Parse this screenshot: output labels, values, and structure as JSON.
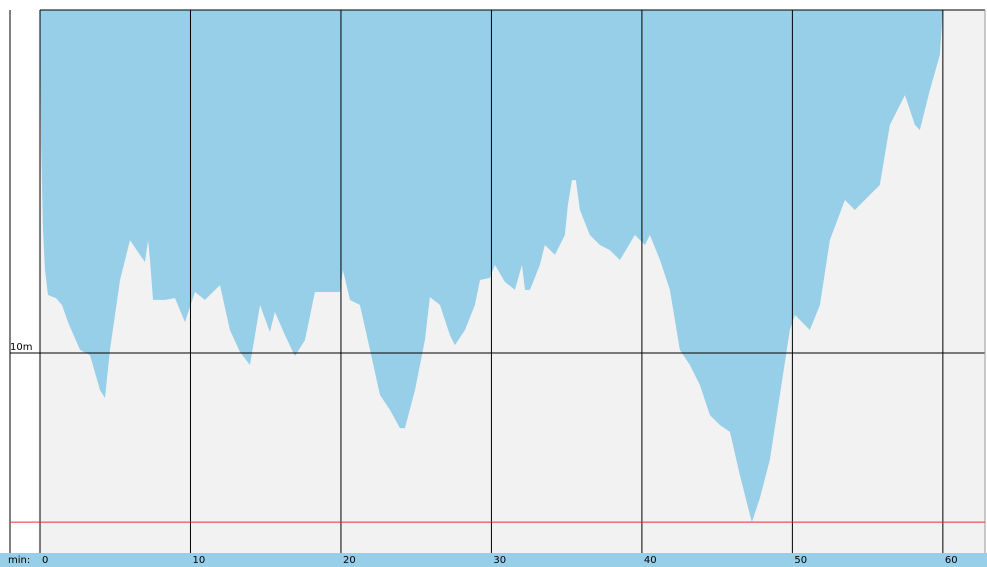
{
  "chart_data": {
    "type": "area",
    "x_label": "min:",
    "x": [
      0,
      0.07,
      0.2,
      0.33,
      0.53,
      1.06,
      1.46,
      1.86,
      2.66,
      3.32,
      3.99,
      4.32,
      4.65,
      5.32,
      5.98,
      6.64,
      6.98,
      7.18,
      7.31,
      7.51,
      8.31,
      8.97,
      9.63,
      10.3,
      10.96,
      11.96,
      12.62,
      13.29,
      13.95,
      14.29,
      14.62,
      15.28,
      15.61,
      16.28,
      16.94,
      17.61,
      18.27,
      19.93,
      20.13,
      20.6,
      21.26,
      21.93,
      22.59,
      23.26,
      23.92,
      24.25,
      24.92,
      25.58,
      25.91,
      26.58,
      27.24,
      27.57,
      28.24,
      28.9,
      29.24,
      29.9,
      30.23,
      30.9,
      31.56,
      32.03,
      32.23,
      32.56,
      33.22,
      33.55,
      34.22,
      34.88,
      35.08,
      35.35,
      35.61,
      35.88,
      36.54,
      37.21,
      37.87,
      38.54,
      39.53,
      40.2,
      40.53,
      41.2,
      41.86,
      42.52,
      43.19,
      43.85,
      44.52,
      45.18,
      45.85,
      46.51,
      47.18,
      47.31,
      47.84,
      48.5,
      49.17,
      49.83,
      50.17,
      51.16,
      51.83,
      52.49,
      53.49,
      54.15,
      55.15,
      55.81,
      56.48,
      57.48,
      58.14,
      58.47,
      59.14,
      59.8,
      60
    ],
    "values": [
      0,
      3.79,
      6.41,
      7.58,
      8.31,
      8.4,
      8.6,
      9.1,
      9.91,
      10.06,
      11.08,
      11.31,
      9.91,
      7.87,
      6.71,
      7.14,
      7.35,
      6.71,
      7.29,
      8.45,
      8.45,
      8.4,
      9.1,
      8.22,
      8.45,
      8.02,
      9.33,
      9.97,
      10.35,
      9.48,
      8.6,
      9.39,
      8.8,
      9.48,
      10.09,
      9.62,
      8.22,
      8.22,
      7.58,
      8.45,
      8.6,
      9.91,
      11.22,
      11.66,
      12.19,
      12.19,
      11.08,
      9.62,
      8.37,
      8.6,
      9.48,
      9.77,
      9.33,
      8.6,
      7.87,
      7.81,
      7.43,
      7.93,
      8.16,
      7.43,
      8.16,
      8.16,
      7.43,
      6.85,
      7.14,
      6.56,
      5.69,
      4.96,
      4.96,
      5.83,
      6.56,
      6.85,
      7.0,
      7.29,
      6.56,
      6.85,
      6.56,
      7.29,
      8.16,
      9.91,
      10.35,
      10.93,
      11.81,
      12.1,
      12.3,
      13.56,
      14.72,
      14.93,
      14.23,
      13.12,
      11.22,
      9.33,
      8.89,
      9.33,
      8.6,
      6.71,
      5.54,
      5.83,
      5.39,
      5.1,
      3.35,
      2.48,
      3.35,
      3.5,
      2.33,
      1.31,
      0
    ],
    "color": "#97cfe8",
    "xlim": [
      0,
      62.8
    ],
    "xticks": [
      0,
      10,
      20,
      30,
      40,
      50,
      60
    ],
    "ylim": [
      0,
      15.83
    ],
    "y_inverted": true,
    "yticks": [
      {
        "value": 10,
        "label": "10m"
      }
    ],
    "reference_line": {
      "value": 14.93,
      "color": "#e03030"
    },
    "grid": true
  }
}
